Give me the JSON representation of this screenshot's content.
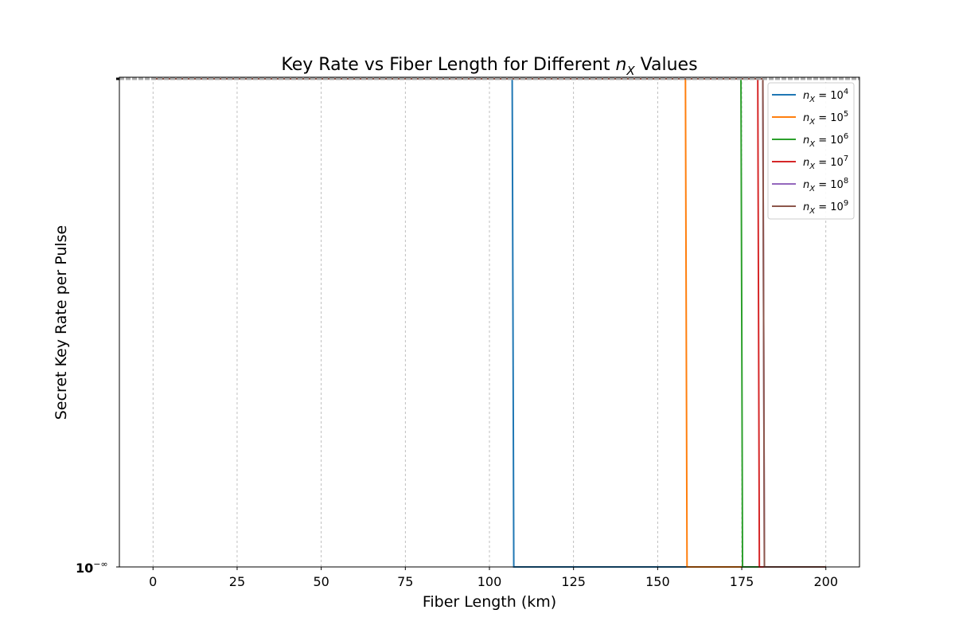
{
  "chart_data": {
    "type": "line",
    "title_prefix": "Key Rate vs Fiber Length for Different ",
    "title_var": "n",
    "title_var_sub": "X",
    "title_suffix": " Values",
    "xlabel": "Fiber Length (km)",
    "ylabel": "Secret Key Rate per Pulse",
    "xlim": [
      -10,
      210
    ],
    "xticks": [
      0,
      25,
      50,
      75,
      100,
      125,
      150,
      175,
      200
    ],
    "x_scale": "linear",
    "y_scale": "log",
    "y_tick_label": "10",
    "y_tick_exponent": "−∞",
    "grid": "x-major dashed",
    "legend_position": "upper right",
    "series": [
      {
        "name": "n_X = 10^4",
        "name_base": "n",
        "name_sub": "X",
        "name_eq": " = 10",
        "name_exp": "4",
        "color": "#1f77b4",
        "drop_km": 107
      },
      {
        "name": "n_X = 10^5",
        "name_base": "n",
        "name_sub": "X",
        "name_eq": " = 10",
        "name_exp": "5",
        "color": "#ff7f0e",
        "drop_km": 158.5
      },
      {
        "name": "n_X = 10^6",
        "name_base": "n",
        "name_sub": "X",
        "name_eq": " = 10",
        "name_exp": "6",
        "color": "#2ca02c",
        "drop_km": 175
      },
      {
        "name": "n_X = 10^7",
        "name_base": "n",
        "name_sub": "X",
        "name_eq": " = 10",
        "name_exp": "7",
        "color": "#d62728",
        "drop_km": 180
      },
      {
        "name": "n_X = 10^8",
        "name_base": "n",
        "name_sub": "X",
        "name_eq": " = 10",
        "name_exp": "8",
        "color": "#9467bd",
        "drop_km": 181.5
      },
      {
        "name": "n_X = 10^9",
        "name_base": "n",
        "name_sub": "X",
        "name_eq": " = 10",
        "name_exp": "9",
        "color": "#8c564b",
        "drop_km": 181.5
      }
    ],
    "x_range": [
      0,
      200
    ]
  }
}
